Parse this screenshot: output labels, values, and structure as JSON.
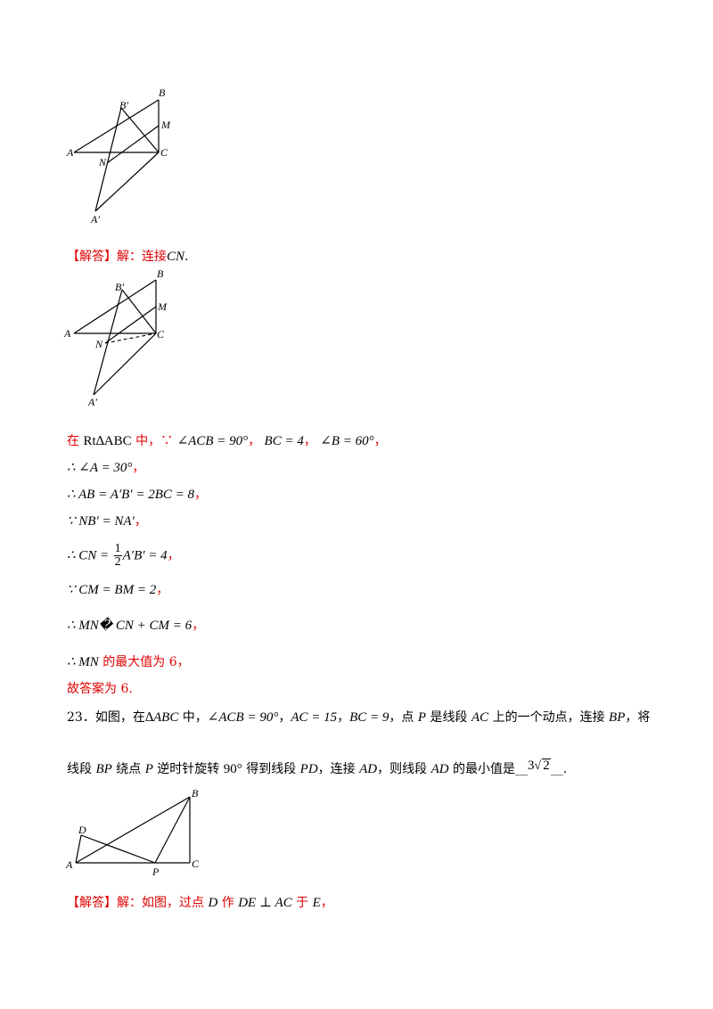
{
  "figure1": {
    "labels": {
      "A": "A",
      "B": "B",
      "B1": "B′",
      "M": "M",
      "N": "N",
      "C": "C",
      "A1": "A′"
    }
  },
  "answer_intro": {
    "tag": "【解答】",
    "text": "解：连接",
    "math": "CN",
    "end": "."
  },
  "figure2": {
    "labels": {
      "A": "A",
      "B": "B",
      "B1": "B′",
      "M": "M",
      "N": "N",
      "C": "C",
      "A1": "A′"
    }
  },
  "steps": [
    {
      "pre": "在 ",
      "math": "Rt∆ABC",
      "mid": " 中，∵ ",
      "math2": "∠ACB = 90°",
      "post": "，",
      "math3": "BC = 4",
      "post2": "，",
      "math4": "∠B = 60°",
      "post3": "，"
    },
    {
      "math": "∴ ∠A = 30°",
      "post": "，"
    },
    {
      "math": "∴ AB = A′B′ = 2BC = 8",
      "post": "，"
    },
    {
      "math": "∵ NB′ = NA′",
      "post": "，"
    },
    {
      "pre_math": "∴ CN =",
      "frac_num": "1",
      "frac_den": "2",
      "math": "A′B′ = 4",
      "post": "，"
    },
    {
      "math": "∵ CM = BM = 2",
      "post": "，"
    },
    {
      "math": "∴ MN� CN + CM = 6",
      "post": "，"
    },
    {
      "math": "∴ MN",
      "post": " 的最大值为 6，"
    },
    {
      "text": "故答案为 6."
    }
  ],
  "q23": {
    "line1": {
      "num": "23．如图，在",
      "m1": "∆ABC",
      "t1": " 中，",
      "m2": "∠ACB = 90°",
      "t2": "，",
      "m3": "AC = 15",
      "t3": "，",
      "m4": "BC = 9",
      "t4": "，点 ",
      "m5": "P",
      "t5": " 是线段 ",
      "m6": "AC",
      "t6": " 上的一个动点，连接 ",
      "m7": "BP",
      "t7": "，将"
    },
    "line2": {
      "t1": "线段 ",
      "m1": "BP",
      "t2": " 绕点 ",
      "m2": "P",
      "t3": " 逆时针旋转 ",
      "m3": "90°",
      "t4": " 得到线段 ",
      "m4": "PD",
      "t5": "，连接 ",
      "m5": "AD",
      "t6": "，则线段 ",
      "m6": "AD",
      "t7": " 的最小值是",
      "blank_pre": "__",
      "answer_coef": "3",
      "answer_rad": "2",
      "blank_post": "__."
    }
  },
  "figure3": {
    "labels": {
      "A": "A",
      "B": "B",
      "C": "C",
      "D": "D",
      "P": "P"
    }
  },
  "answer2": {
    "tag": "【解答】",
    "t1": "解：如图，过点 ",
    "m1": "D",
    "t2": " 作 ",
    "m2": "DE ⊥ AC",
    "t3": " 于 ",
    "m3": "E",
    "t4": "，"
  }
}
